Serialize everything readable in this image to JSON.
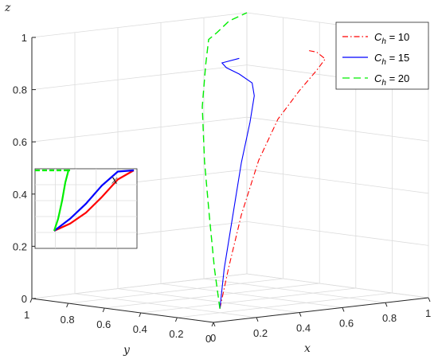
{
  "chart_data": {
    "type": "line",
    "projection": "3d",
    "zlabel": "z",
    "xlabel": "x",
    "ylabel": "y",
    "zlim": [
      0,
      1
    ],
    "xlim": [
      0,
      1
    ],
    "ylim": [
      0,
      1
    ],
    "z_ticks": [
      "0",
      "0.2",
      "0.4",
      "0.6",
      "0.8",
      "1"
    ],
    "x_ticks": [
      "0",
      "0.2",
      "0.4",
      "0.6",
      "0.8",
      "1"
    ],
    "y_ticks": [
      "0",
      "0.2",
      "0.4",
      "0.6",
      "0.8",
      "1"
    ],
    "grid": true,
    "legend_position": "top-right",
    "legend": [
      {
        "prefix": "C",
        "subscript": "h",
        "suffix": " = 10",
        "color": "#ff0000",
        "style": "dash-dot"
      },
      {
        "prefix": "C",
        "subscript": "h",
        "suffix": " = 15",
        "color": "#0000ff",
        "style": "solid"
      },
      {
        "prefix": "C",
        "subscript": "h",
        "suffix": " = 20",
        "color": "#00ee00",
        "style": "dashed"
      }
    ],
    "series": [
      {
        "name": "Ch = 10",
        "color": "#ff0000",
        "points": [
          [
            0.03,
            0.0,
            0.05
          ],
          [
            0.07,
            0.0,
            0.2
          ],
          [
            0.13,
            0.0,
            0.4
          ],
          [
            0.21,
            0.0,
            0.6
          ],
          [
            0.3,
            0.0,
            0.75
          ],
          [
            0.4,
            0.0,
            0.85
          ],
          [
            0.48,
            0.0,
            0.92
          ],
          [
            0.52,
            0.0,
            0.96
          ],
          [
            0.48,
            0.0,
            0.99
          ],
          [
            0.44,
            0.0,
            1.0
          ]
        ]
      },
      {
        "name": "Ch = 15",
        "color": "#0000ff",
        "points": [
          [
            0.03,
            0.0,
            0.05
          ],
          [
            0.05,
            0.0,
            0.2
          ],
          [
            0.09,
            0.0,
            0.4
          ],
          [
            0.13,
            0.0,
            0.6
          ],
          [
            0.17,
            0.0,
            0.75
          ],
          [
            0.19,
            0.0,
            0.85
          ],
          [
            0.18,
            0.0,
            0.9
          ],
          [
            0.12,
            0.0,
            0.94
          ],
          [
            0.06,
            0.0,
            0.97
          ],
          [
            0.04,
            0.0,
            0.99
          ],
          [
            0.12,
            0.0,
            1.0
          ]
        ]
      },
      {
        "name": "Ch = 20",
        "color": "#00ee00",
        "points": [
          [
            0.03,
            0.0,
            0.05
          ],
          [
            0.03,
            0.03,
            0.2
          ],
          [
            0.04,
            0.07,
            0.4
          ],
          [
            0.06,
            0.12,
            0.6
          ],
          [
            0.1,
            0.18,
            0.8
          ],
          [
            0.2,
            0.28,
            0.94
          ],
          [
            0.4,
            0.5,
            1.0
          ],
          [
            0.65,
            0.75,
            0.98
          ],
          [
            0.85,
            0.92,
            0.99
          ],
          [
            1.0,
            1.0,
            1.0
          ]
        ]
      }
    ],
    "inset": {
      "description_label": "x",
      "series": [
        {
          "name": "Ch = 10",
          "color": "#ff0000",
          "points": [
            [
              0,
              0
            ],
            [
              0.2,
              0.12
            ],
            [
              0.4,
              0.3
            ],
            [
              0.6,
              0.56
            ],
            [
              0.8,
              0.85
            ],
            [
              1,
              1
            ]
          ]
        },
        {
          "name": "Ch = 15",
          "color": "#0000ff",
          "points": [
            [
              0,
              0
            ],
            [
              0.2,
              0.2
            ],
            [
              0.4,
              0.45
            ],
            [
              0.6,
              0.75
            ],
            [
              0.8,
              0.98
            ],
            [
              1,
              1
            ]
          ]
        },
        {
          "name": "Ch = 20",
          "color": "#00ee00",
          "points": [
            [
              0,
              0
            ],
            [
              0.05,
              0.2
            ],
            [
              0.1,
              0.5
            ],
            [
              0.14,
              0.8
            ],
            [
              0.18,
              1
            ],
            [
              0.2,
              1
            ]
          ]
        }
      ]
    }
  }
}
